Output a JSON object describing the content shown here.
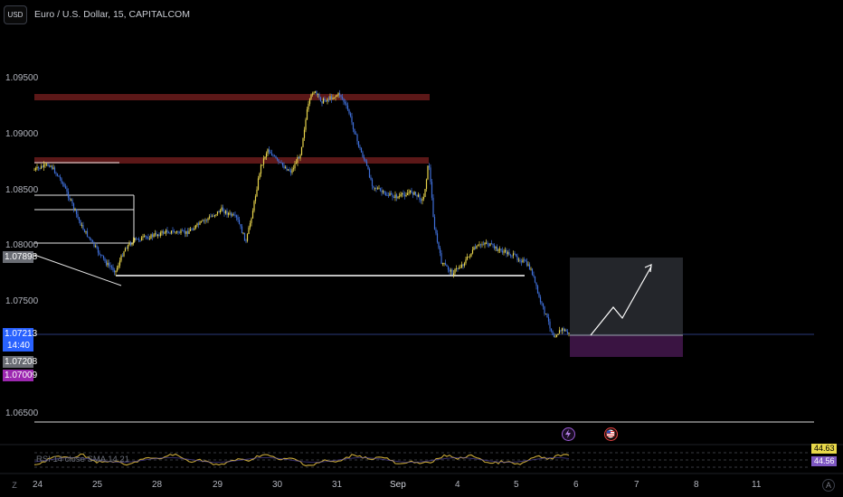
{
  "header": {
    "currency_button": "USD",
    "title": "Euro / U.S. Dollar, 15, CAPITALCOM"
  },
  "price_axis": {
    "ticks": [
      "1.09500",
      "1.09000",
      "1.08500",
      "1.08000",
      "1.07500",
      "1.06500"
    ]
  },
  "price_labels": {
    "level_1": "1.07898",
    "current_price": "1.07213",
    "countdown": "14:40",
    "level_2": "1.07208",
    "level_3": "1.07009"
  },
  "time_axis": {
    "ticks": [
      "24",
      "25",
      "28",
      "29",
      "30",
      "31",
      "Sep",
      "4",
      "5",
      "6",
      "7",
      "8",
      "11"
    ]
  },
  "rsi": {
    "label": "RSI 14 close SMA 14 21",
    "value_1": "44.63",
    "value_2": "44.56"
  },
  "corner": {
    "left": "Z",
    "right": "A"
  },
  "icons": {
    "flash_event": "lightning-icon",
    "us_flag_event": "us-flag-icon"
  },
  "colors": {
    "background": "#000000",
    "candle": "#e8d44c",
    "candle_alt": "#3f6fd8",
    "resistance": "#5c1818",
    "current_price": "#2962ff",
    "target_zone": "#2a2d33",
    "stop_zone": "#3a1442",
    "rsi_line": "#c9a93a"
  }
}
